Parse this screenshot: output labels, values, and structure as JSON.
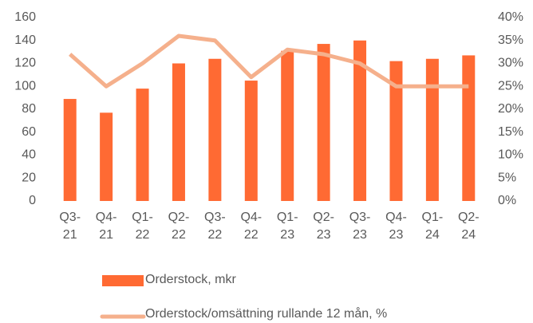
{
  "chart_data": {
    "type": "bar",
    "categories": [
      "Q3-21",
      "Q4-21",
      "Q1-22",
      "Q2-22",
      "Q3-22",
      "Q4-22",
      "Q1-23",
      "Q2-23",
      "Q3-23",
      "Q4-23",
      "Q1-24",
      "Q2-24"
    ],
    "series": [
      {
        "name": "Orderstock, mkr",
        "type": "bar",
        "color": "#ff6a33",
        "values": [
          89,
          77,
          98,
          120,
          124,
          105,
          131,
          137,
          140,
          122,
          124,
          127
        ]
      },
      {
        "name": "Orderstock/omsättning rullande 12 mån, %",
        "type": "line",
        "axis": "y2",
        "color": "#f5b08c",
        "values": [
          32,
          25,
          30,
          36,
          35,
          27,
          33,
          32,
          30,
          25,
          25,
          25
        ]
      }
    ],
    "ylim": [
      0,
      160
    ],
    "yticks": [
      0,
      20,
      40,
      60,
      80,
      100,
      120,
      140,
      160
    ],
    "y2lim": [
      0,
      40
    ],
    "y2ticks": [
      {
        "value": 0,
        "label": "0%"
      },
      {
        "value": 5,
        "label": "5%"
      },
      {
        "value": 10,
        "label": "10%"
      },
      {
        "value": 15,
        "label": "15%"
      },
      {
        "value": 20,
        "label": "20%"
      },
      {
        "value": 25,
        "label": "25%"
      },
      {
        "value": 30,
        "label": "30%"
      },
      {
        "value": 35,
        "label": "35%"
      },
      {
        "value": 40,
        "label": "40%"
      }
    ],
    "grid": false,
    "legend": "bottom"
  }
}
